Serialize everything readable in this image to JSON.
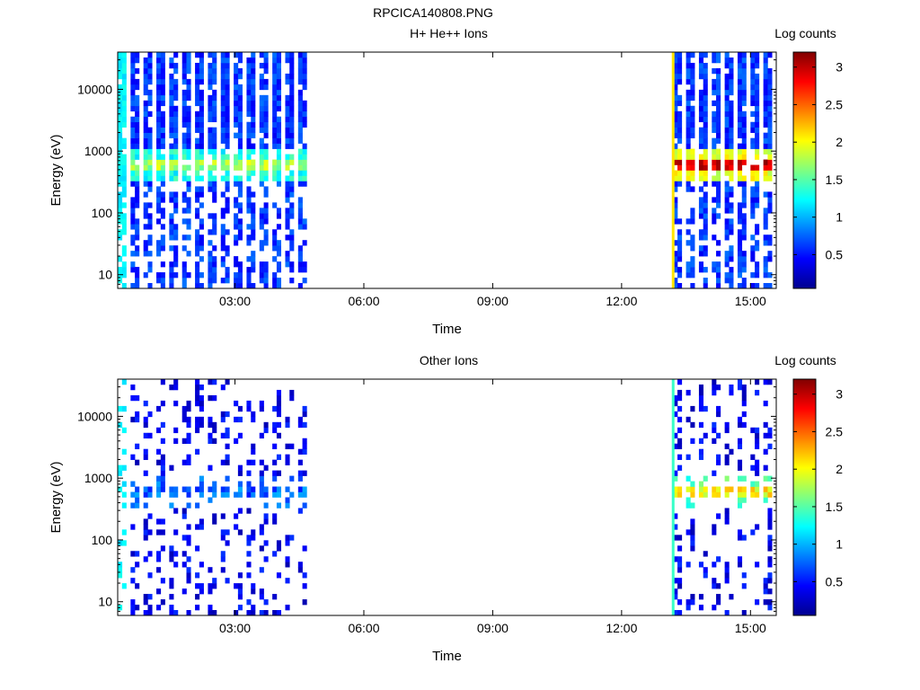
{
  "figure": {
    "title": "RPCICA140808.PNG"
  },
  "colors": {
    "colormap": "jet",
    "background": "#ffffff",
    "axes": "#000000"
  },
  "chart_data": [
    {
      "type": "heatmap",
      "title": "H+ He++ Ions",
      "xlabel": "Time",
      "ylabel": "Energy (eV)",
      "x_tick_labels": [
        "03:00",
        "06:00",
        "09:00",
        "12:00",
        "15:00"
      ],
      "x_ticks_hours": [
        3,
        6,
        9,
        12,
        15
      ],
      "xlim_hours": [
        0.27,
        15.6
      ],
      "y_scale": "log",
      "ylim": [
        6,
        40000
      ],
      "y_tick_labels": [
        "10",
        "100",
        "1000",
        "10000"
      ],
      "y_ticks": [
        10,
        100,
        1000,
        10000
      ],
      "colorbar": {
        "label": "Log counts",
        "range": [
          0.05,
          3.2
        ],
        "tick_labels": [
          "0.5",
          "1",
          "1.5",
          "2",
          "2.5",
          "3"
        ],
        "ticks": [
          0.5,
          1,
          1.5,
          2,
          2.5,
          3
        ]
      },
      "data_intervals_hours": [
        [
          0.27,
          4.72
        ],
        [
          13.2,
          15.6
        ]
      ],
      "stripe_period_hours": 0.3,
      "peak_energy_band_ev": [
        450,
        750
      ],
      "peak_log_counts_first_interval": 2.0,
      "peak_log_counts_second_interval": 3.2,
      "background_log_counts": 0.4
    },
    {
      "type": "heatmap",
      "title": "Other Ions",
      "xlabel": "Time",
      "ylabel": "Energy (eV)",
      "x_tick_labels": [
        "03:00",
        "06:00",
        "09:00",
        "12:00",
        "15:00"
      ],
      "x_ticks_hours": [
        3,
        6,
        9,
        12,
        15
      ],
      "xlim_hours": [
        0.27,
        15.6
      ],
      "y_scale": "log",
      "ylim": [
        6,
        40000
      ],
      "y_tick_labels": [
        "10",
        "100",
        "1000",
        "10000"
      ],
      "y_ticks": [
        10,
        100,
        1000,
        10000
      ],
      "colorbar": {
        "label": "Log counts",
        "range": [
          0.05,
          3.2
        ],
        "tick_labels": [
          "0.5",
          "1",
          "1.5",
          "2",
          "2.5",
          "3"
        ],
        "ticks": [
          0.5,
          1,
          1.5,
          2,
          2.5,
          3
        ]
      },
      "data_intervals_hours": [
        [
          0.27,
          4.72
        ],
        [
          13.2,
          15.6
        ]
      ],
      "stripe_period_hours": 0.3,
      "peak_energy_band_ev": [
        450,
        750
      ],
      "peak_log_counts_first_interval": 1.0,
      "peak_log_counts_second_interval": 2.3,
      "background_log_counts": 0.2
    }
  ]
}
